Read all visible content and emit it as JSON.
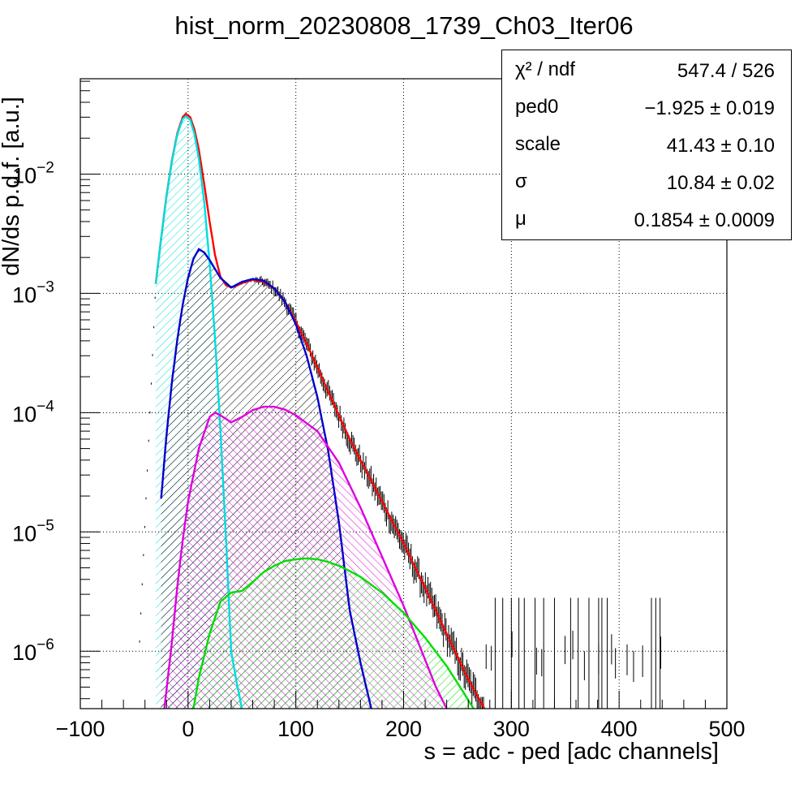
{
  "title": "hist_norm_20230808_1739_Ch03_Iter06",
  "stats": [
    {
      "name": "χ² / ndf",
      "value": "547.4 / 526"
    },
    {
      "name": "ped0",
      "value": "−1.925 ± 0.019"
    },
    {
      "name": "scale",
      "value": "41.43 ± 0.10"
    },
    {
      "name": "σ",
      "value": "10.84 ± 0.02"
    },
    {
      "name": "μ",
      "value": "0.1854 ± 0.0009"
    }
  ],
  "chart_data": {
    "type": "line",
    "title": "hist_norm_20230808_1739_Ch03_Iter06",
    "xlabel": "s = adc - ped [adc channels]",
    "ylabel": "dN/ds p.d.f. [a.u.]",
    "xlim": [
      -100,
      500
    ],
    "ylim": [
      3.3e-07,
      0.063
    ],
    "yscale": "log",
    "grid": true,
    "x_ticks": [
      "−100",
      "0",
      "100",
      "200",
      "300",
      "400",
      "500"
    ],
    "y_ticks": [
      {
        "mant": "10",
        "exp": "−6",
        "value": 1e-06
      },
      {
        "mant": "10",
        "exp": "−5",
        "value": 1e-05
      },
      {
        "mant": "10",
        "exp": "−4",
        "value": 0.0001
      },
      {
        "mant": "10",
        "exp": "−3",
        "value": 0.001
      },
      {
        "mant": "10",
        "exp": "−2",
        "value": 0.01
      }
    ],
    "series": [
      {
        "color": "#ff0000",
        "kind": "line",
        "x": [
          -30,
          -25,
          -20,
          -15,
          -10,
          -5,
          -2,
          2,
          6,
          10,
          15,
          20,
          25,
          30,
          35,
          40,
          45,
          50,
          60,
          70,
          80,
          90,
          100,
          110,
          120,
          130,
          140,
          150,
          160,
          180,
          200,
          220,
          240,
          260,
          275
        ],
        "y": [
          0.0012,
          0.0029,
          0.0066,
          0.013,
          0.022,
          0.03,
          0.032,
          0.03,
          0.0235,
          0.016,
          0.0082,
          0.004,
          0.0021,
          0.00138,
          0.00118,
          0.00112,
          0.00116,
          0.00122,
          0.0013,
          0.00125,
          0.0011,
          0.00085,
          0.00058,
          0.00038,
          0.00024,
          0.00015,
          9.5e-05,
          6e-05,
          4e-05,
          1.8e-05,
          8e-06,
          3.4e-06,
          1.4e-06,
          5.8e-07,
          3.3e-07
        ]
      },
      {
        "color": "#00dddd",
        "kind": "fill-diag",
        "x": [
          -30,
          -25,
          -20,
          -15,
          -10,
          -5,
          -2,
          2,
          6,
          10,
          15,
          20,
          25,
          30,
          35,
          40,
          45,
          50
        ],
        "y": [
          0.0012,
          0.0029,
          0.0065,
          0.0128,
          0.0215,
          0.029,
          0.0305,
          0.0285,
          0.0215,
          0.0135,
          0.0058,
          0.0018,
          0.00042,
          7.2e-05,
          9.5e-06,
          1e-06,
          5.5e-07,
          3.3e-07
        ]
      },
      {
        "color": "#0000cc",
        "kind": "fill-diag",
        "x": [
          -25,
          -20,
          -15,
          -10,
          -5,
          0,
          5,
          10,
          15,
          20,
          30,
          40,
          50,
          60,
          70,
          80,
          90,
          100,
          110,
          120,
          130,
          140,
          150,
          160,
          170
        ],
        "y": [
          1.9e-05,
          6.5e-05,
          0.00018,
          0.00041,
          0.0008,
          0.00135,
          0.00195,
          0.00235,
          0.0022,
          0.0019,
          0.00135,
          0.00112,
          0.00125,
          0.00132,
          0.00128,
          0.0011,
          0.00085,
          0.00055,
          0.0003,
          0.000135,
          4.8e-05,
          1.2e-05,
          2.2e-06,
          8e-07,
          3.3e-07
        ]
      },
      {
        "color": "#dd00dd",
        "kind": "fill-anti",
        "x": [
          -22,
          -15,
          -10,
          -5,
          0,
          10,
          20,
          25,
          30,
          40,
          50,
          60,
          70,
          80,
          90,
          100,
          120,
          140,
          160,
          180,
          200,
          215,
          230,
          240
        ],
        "y": [
          3.3e-07,
          1.2e-06,
          3.5e-06,
          8.5e-06,
          1.8e-05,
          5e-05,
          9.2e-05,
          0.0001,
          9.5e-05,
          8.3e-05,
          9.2e-05,
          0.000105,
          0.000112,
          0.000112,
          0.000106,
          9.5e-05,
          7e-05,
          3.8e-05,
          1.6e-05,
          6.2e-06,
          2.4e-06,
          1.1e-06,
          5e-07,
          3.3e-07
        ]
      },
      {
        "color": "#00dd00",
        "kind": "fill-diag",
        "x": [
          5,
          10,
          20,
          30,
          40,
          50,
          60,
          70,
          80,
          90,
          100,
          110,
          120,
          130,
          140,
          150,
          160,
          180,
          200,
          220,
          240,
          255,
          265
        ],
        "y": [
          3.3e-07,
          6e-07,
          1.4e-06,
          2.6e-06,
          3.1e-06,
          3.2e-06,
          3.8e-06,
          4.6e-06,
          5.2e-06,
          5.7e-06,
          5.9e-06,
          6e-06,
          5.9e-06,
          5.6e-06,
          5.2e-06,
          4.7e-06,
          4.2e-06,
          3.1e-06,
          2.1e-06,
          1.3e-06,
          7.5e-07,
          4.6e-07,
          3.3e-07
        ]
      }
    ]
  }
}
